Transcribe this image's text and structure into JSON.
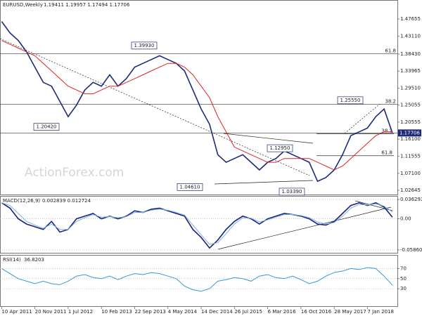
{
  "chart_data": [
    {
      "type": "line",
      "title": "EURUSD,Weekly",
      "quote": "1.19411 1.19957 1.17494 1.17706",
      "watermark": "ActionForex.com",
      "xlim": [
        -0.2,
        47.6
      ],
      "ylim": [
        1.0135,
        1.5264
      ],
      "yticks": [
        1.47655,
        {
          "value": 1.4311,
          "label": "1.43110"
        },
        {
          "value": 1.3843,
          "label": "1.38430"
        },
        1.33965,
        {
          "value": 1.2951,
          "label": "1.29510"
        },
        1.25055,
        1.20555,
        {
          "value": 1.161,
          "label": "1.16100"
        },
        1.11555,
        {
          "value": 1.071,
          "label": "1.07100"
        },
        1.02645
      ],
      "series": [
        {
          "color": "#1c2a78",
          "values": [
            1.47,
            1.44,
            1.42,
            1.39,
            1.35,
            1.31,
            1.3,
            1.26,
            1.22,
            1.25,
            1.29,
            1.31,
            1.3,
            1.33,
            1.3,
            1.32,
            1.35,
            1.36,
            1.37,
            1.38,
            1.37,
            1.36,
            1.34,
            1.29,
            1.24,
            1.2,
            1.12,
            1.1,
            1.11,
            1.12,
            1.1,
            1.08,
            1.1,
            1.11,
            1.13,
            1.12,
            1.11,
            1.1,
            1.05,
            1.06,
            1.08,
            1.12,
            1.17,
            1.18,
            1.19,
            1.22,
            1.24,
            1.17706
          ]
        },
        {
          "color": "#e02424",
          "values": [
            1.42,
            1.41,
            1.4,
            1.39,
            1.38,
            1.36,
            1.34,
            1.32,
            1.3,
            1.29,
            1.28,
            1.28,
            1.29,
            1.3,
            1.3,
            1.31,
            1.32,
            1.33,
            1.34,
            1.35,
            1.36,
            1.36,
            1.35,
            1.33,
            1.3,
            1.27,
            1.22,
            1.18,
            1.14,
            1.13,
            1.12,
            1.11,
            1.1,
            1.1,
            1.11,
            1.11,
            1.11,
            1.11,
            1.1,
            1.09,
            1.08,
            1.09,
            1.11,
            1.13,
            1.15,
            1.17,
            1.18,
            1.18
          ]
        }
      ],
      "annotations": [
        {
          "value": 1.3993,
          "label": "1.39930"
        },
        {
          "value": 1.2042,
          "label": "1.20420"
        },
        {
          "value": 1.2555,
          "label": "1.25550"
        },
        {
          "value": 1.0461,
          "label": "1.04610"
        },
        {
          "value": 1.0339,
          "label": "1.03390"
        },
        {
          "value": 1.1295,
          "label": "1.12950"
        }
      ],
      "levels": [
        {
          "value": 1.3849,
          "label": 61.8
        },
        {
          "value": 1.2521,
          "label": 38.2
        },
        {
          "value": 1.1747,
          "label": 38.2
        },
        {
          "value": 1.1173,
          "label": 61.8
        }
      ],
      "last_price": {
        "value": 1.17706,
        "label": "1.17706"
      }
    },
    {
      "type": "line",
      "title": "MACD(12,26,9)",
      "quote": "0.002839 0.012724",
      "xlim": [
        -0.2,
        47.6
      ],
      "ylim": [
        -0.06529,
        0.04298
      ],
      "yticks": [
        0.036293,
        {
          "value": 0,
          "label": "0.00"
        },
        -0.058606
      ],
      "series": [
        {
          "color": "#1a237e",
          "values": [
            0.03,
            0.02,
            0.0,
            -0.01,
            -0.015,
            -0.02,
            -0.005,
            -0.025,
            -0.02,
            0.0,
            0.005,
            0.01,
            0.0,
            0.005,
            0.0,
            0.005,
            0.015,
            0.012,
            0.018,
            0.02,
            0.015,
            0.01,
            0.005,
            -0.02,
            -0.035,
            -0.055,
            -0.04,
            -0.02,
            -0.005,
            0.005,
            0.0,
            -0.01,
            0.0,
            0.005,
            0.01,
            0.008,
            0.005,
            0.0,
            -0.01,
            -0.012,
            -0.005,
            0.01,
            0.025,
            0.03,
            0.025,
            0.03,
            0.022,
            0.003
          ]
        },
        {
          "color": "#7fb0e0",
          "values": [
            0.03,
            0.025,
            0.01,
            -0.005,
            -0.012,
            -0.018,
            -0.01,
            -0.02,
            -0.02,
            -0.005,
            0.002,
            0.008,
            0.003,
            0.004,
            0.002,
            0.004,
            0.012,
            0.012,
            0.016,
            0.018,
            0.016,
            0.012,
            0.007,
            -0.012,
            -0.03,
            -0.048,
            -0.045,
            -0.028,
            -0.01,
            0.002,
            0.001,
            -0.006,
            -0.002,
            0.003,
            0.008,
            0.008,
            0.006,
            0.002,
            -0.006,
            -0.01,
            -0.007,
            0.005,
            0.02,
            0.027,
            0.026,
            0.028,
            0.024,
            0.0127
          ]
        }
      ]
    },
    {
      "type": "line",
      "title": "RSI(14)",
      "quote": "36.8203",
      "xlim": [
        -0.2,
        47.6
      ],
      "ylim": [
        -6,
        97
      ],
      "yticks": [
        70,
        50,
        30
      ],
      "xticks": [
        {
          "value": 0,
          "label": "10 Apr 2011"
        },
        {
          "value": 4,
          "label": "20 Nov 2011"
        },
        {
          "value": 8,
          "label": "1 Jul 2012"
        },
        {
          "value": 12,
          "label": "10 Feb 2013"
        },
        {
          "value": 16,
          "label": "22 Sep 2013"
        },
        {
          "value": 20,
          "label": "4 May 2014"
        },
        {
          "value": 24,
          "label": "14 Dec 2014"
        },
        {
          "value": 28,
          "label": "26 Jul 2015"
        },
        {
          "value": 32,
          "label": "6 Mar 2016"
        },
        {
          "value": 36,
          "label": "16 Oct 2016"
        },
        {
          "value": 40,
          "label": "28 May 2017"
        },
        {
          "value": 44,
          "label": "7 Jan 2018"
        }
      ],
      "series": [
        {
          "color": "#3399dd",
          "values": [
            70,
            60,
            50,
            45,
            40,
            45,
            40,
            38,
            45,
            55,
            58,
            52,
            50,
            55,
            48,
            55,
            60,
            58,
            62,
            60,
            55,
            50,
            35,
            28,
            25,
            30,
            45,
            48,
            52,
            50,
            45,
            55,
            58,
            52,
            50,
            55,
            48,
            40,
            45,
            55,
            62,
            65,
            70,
            68,
            72,
            70,
            55,
            37
          ]
        }
      ]
    }
  ]
}
